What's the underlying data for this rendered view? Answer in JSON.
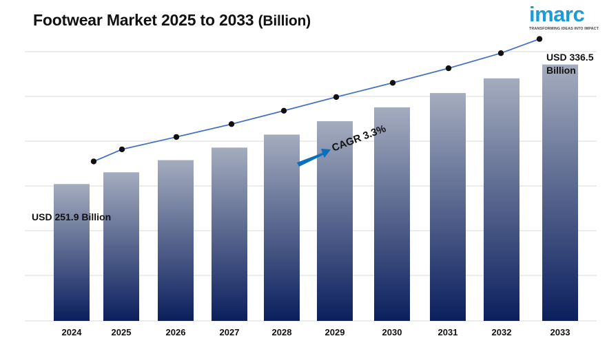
{
  "title": {
    "main": "Footwear Market 2025 to 2033",
    "unit": "(Billion)"
  },
  "logo": {
    "word": "imarc",
    "tagline": "TRANSFORMING IDEAS INTO IMPACT"
  },
  "colors": {
    "bar_top": "#a4acbe",
    "bar_bottom": "#0b1f5e",
    "line": "#4472c4",
    "marker": "#111111",
    "grid": "#d9d9d9",
    "arrow": "#0c6fbd",
    "logo": "#1d9bd7"
  },
  "annotations": {
    "start_value": "USD 251.9 Billion",
    "end_value_line1": "USD 336.5",
    "end_value_line2": "Billion",
    "cagr": "CAGR 3.3%"
  },
  "chart_data": {
    "type": "bar",
    "categories": [
      "2024",
      "2025",
      "2026",
      "2027",
      "2028",
      "2029",
      "2030",
      "2031",
      "2032",
      "2033"
    ],
    "series": [
      {
        "values": [
          251.9,
          260.2,
          268.8,
          277.7,
          286.9,
          296.4,
          306.2,
          316.3,
          326.7,
          336.5
        ]
      }
    ],
    "overlay": "line-with-markers",
    "ylim": [
      155,
      350
    ],
    "grid": "horizontal",
    "legend": "none",
    "xlabel": "",
    "ylabel": ""
  }
}
